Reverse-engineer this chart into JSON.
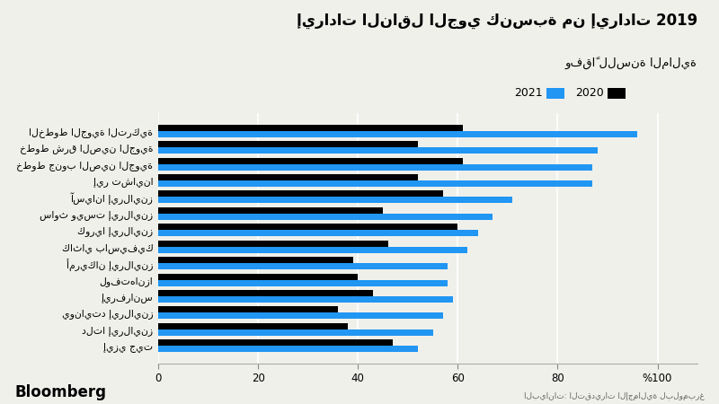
{
  "title": "إيرادات الناقل الجوي كنسبة من إيرادات 2019",
  "subtitle": "وفقاً للسنة المالية",
  "legend_label_2020": "2020",
  "legend_label_2021": "2021",
  "color_2020": "#000000",
  "color_2021": "#2196f3",
  "source": "البيانات: التقديرات الإجمالية لبلومبرغ",
  "bloomberg": "Bloomberg",
  "carriers": [
    "إيزي جيت",
    "دلتا إيرلاينز",
    "يونايتد إيرلاينز",
    "إيرفرانس",
    "لوفتهانزا",
    "أمريكان إيرلاينز",
    "كاثاي باسيفيك",
    "كوريا إيرلاينز",
    "ساوث ويست إيرلاينز",
    "آسيانا إيرلاينز",
    "إير تشاينا",
    "خطوط جنوب الصين الجوية",
    "خطوط شرق الصين الجوية",
    "الخطوط الجوية التركية"
  ],
  "values_2020": [
    47,
    38,
    36,
    43,
    40,
    39,
    46,
    60,
    45,
    57,
    52,
    61,
    52,
    61
  ],
  "values_2021": [
    52,
    55,
    57,
    59,
    58,
    58,
    62,
    64,
    67,
    71,
    87,
    87,
    88,
    96
  ],
  "background_color": "#f0f0eb",
  "bar_height": 0.38,
  "xlim": [
    0,
    108
  ],
  "xticks": [
    0,
    20,
    40,
    60,
    80,
    100
  ],
  "xtick_labels": [
    "0",
    "20",
    "40",
    "60",
    "80",
    "%100"
  ]
}
